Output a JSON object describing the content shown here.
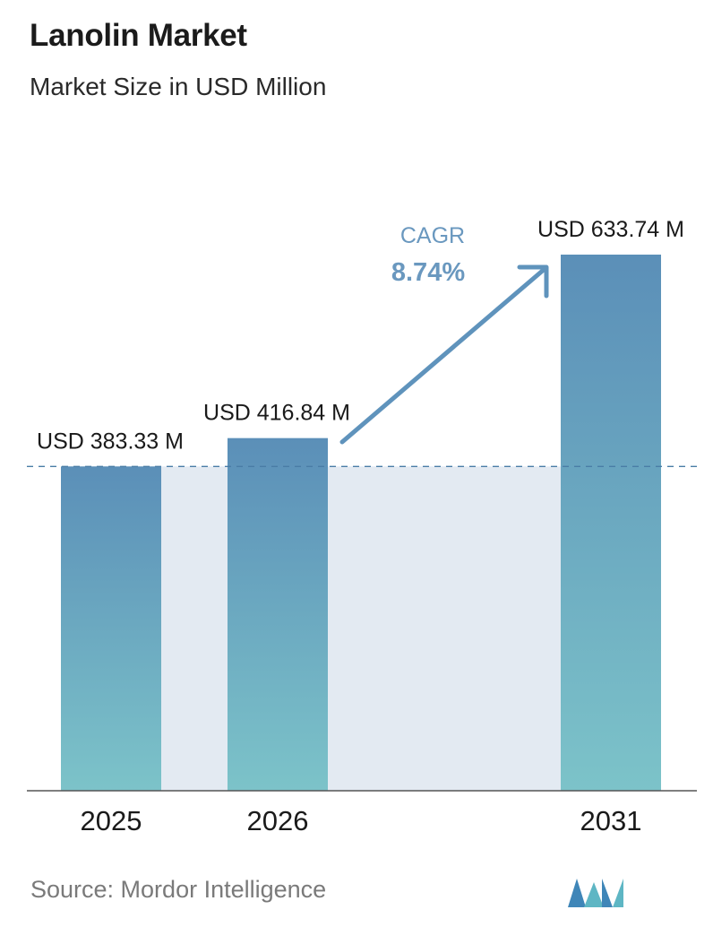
{
  "header": {
    "title": "Lanolin Market",
    "subtitle": "Market Size in USD Million"
  },
  "cagr": {
    "label": "CAGR",
    "value": "8.74%"
  },
  "footer": {
    "source": "Source: Mordor Intelligence",
    "logo_icon": "mordor-intelligence-logo-icon"
  },
  "colors": {
    "bar_top": "#5b8fb8",
    "bar_bottom": "#7cc3c9",
    "band": "#e3eaf2",
    "baseline_dash": "#4a7da6",
    "cagr_arrow": "#5f93bc",
    "cagr_text": "#6a98bf",
    "axis": "#555555"
  },
  "chart_data": {
    "type": "bar",
    "title": "Lanolin Market",
    "subtitle": "Market Size in USD Million",
    "categories": [
      "2025",
      "2026",
      "2031"
    ],
    "values": [
      383.33,
      416.84,
      633.74
    ],
    "data_labels": [
      "USD 383.33 M",
      "USD 416.84 M",
      "USD 633.74 M"
    ],
    "xlabel": "",
    "ylabel": "",
    "unit": "USD Million",
    "ylim": [
      0,
      633.74
    ],
    "grid": false,
    "legend": "none"
  }
}
